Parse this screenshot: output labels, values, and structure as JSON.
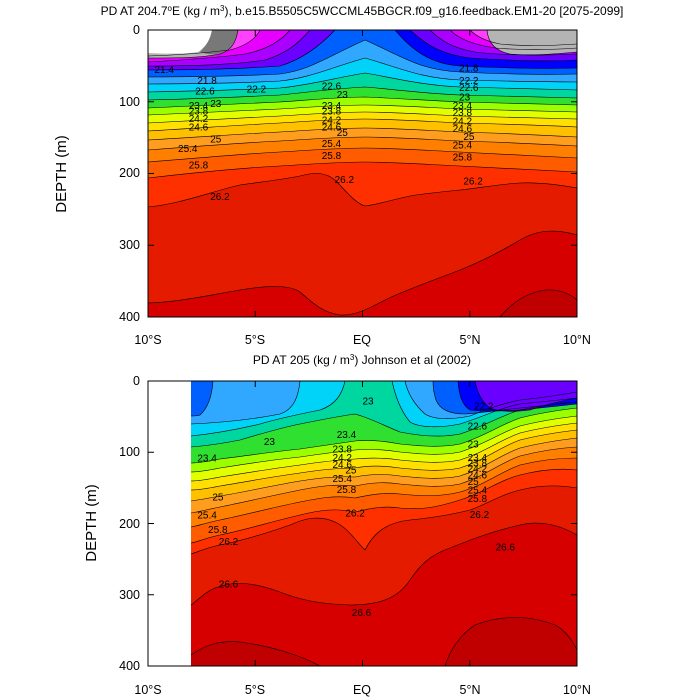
{
  "colors": {
    "band_15": "#d60000",
    "band_14": "#e51b00",
    "band_13": "#ff3000",
    "band_12": "#ff5c00",
    "band_11": "#ff8000",
    "band_10": "#ff9e1e",
    "band_9": "#ffc000",
    "band_8": "#ffe000",
    "band_7": "#e2ff00",
    "band_6": "#9cff00",
    "band_5": "#30e030",
    "band_4": "#00d6a0",
    "band_3": "#00d2f8",
    "band_2": "#30a8ff",
    "band_1": "#0060ff",
    "band_0": "#0000ff",
    "purple_1": "#6a00ff",
    "purple_2": "#aa00ff",
    "magenta_1": "#e600ff",
    "magenta_2": "#ff40ff",
    "gray_light": "#b4b4b4",
    "gray_dark": "#787878",
    "deep": "#c00000"
  },
  "chart_data": [
    {
      "type": "contour",
      "title_prefix": "PD AT 204.7",
      "title_suffix": "E (kg / m",
      "title_end": "), b.e15.B5505C5WCCML45BGCR.f09_g16.feedback.EM1-20 [2075-2099]",
      "ylabel": "DEPTH (m)",
      "x_ticks": [
        "10°S",
        "5°S",
        "EQ",
        "5°N",
        "10°N"
      ],
      "y_ticks": [
        "0",
        "100",
        "200",
        "300",
        "400"
      ],
      "ylim": [
        400,
        0
      ],
      "xlim": [
        -10,
        10
      ],
      "contour_levels": [
        21.4,
        21.8,
        22.2,
        22.6,
        23,
        23.4,
        23.8,
        24.2,
        24.6,
        25,
        25.4,
        25.8,
        26.2,
        26.6
      ],
      "contour_labels": [
        {
          "text": "21.4",
          "lat": -9.7,
          "depth": 60
        },
        {
          "text": "21.8",
          "lat": -7.7,
          "depth": 75
        },
        {
          "text": "22.2",
          "lat": -5.4,
          "depth": 87
        },
        {
          "text": "22.6",
          "lat": -7.8,
          "depth": 90
        },
        {
          "text": "23",
          "lat": -7.1,
          "depth": 107
        },
        {
          "text": "23.4",
          "lat": -8.1,
          "depth": 110
        },
        {
          "text": "23.8",
          "lat": -8.1,
          "depth": 118
        },
        {
          "text": "24.2",
          "lat": -8.1,
          "depth": 128
        },
        {
          "text": "24.6",
          "lat": -8.1,
          "depth": 140
        },
        {
          "text": "25",
          "lat": -7.1,
          "depth": 157
        },
        {
          "text": "25.4",
          "lat": -8.6,
          "depth": 170
        },
        {
          "text": "25.8",
          "lat": -8.1,
          "depth": 193
        },
        {
          "text": "26.2",
          "lat": -7.1,
          "depth": 237
        },
        {
          "text": "22.6",
          "lat": -1.9,
          "depth": 83
        },
        {
          "text": "23",
          "lat": -1.2,
          "depth": 95
        },
        {
          "text": "23.4",
          "lat": -1.9,
          "depth": 110
        },
        {
          "text": "23.8",
          "lat": -1.9,
          "depth": 118
        },
        {
          "text": "24.2",
          "lat": -1.9,
          "depth": 130
        },
        {
          "text": "24.6",
          "lat": -1.9,
          "depth": 140
        },
        {
          "text": "25",
          "lat": -1.2,
          "depth": 148
        },
        {
          "text": "25.4",
          "lat": -1.9,
          "depth": 163
        },
        {
          "text": "25.8",
          "lat": -1.9,
          "depth": 180
        },
        {
          "text": "26.2",
          "lat": -1.3,
          "depth": 213
        },
        {
          "text": "21.8",
          "lat": 4.5,
          "depth": 58
        },
        {
          "text": "22.2",
          "lat": 4.5,
          "depth": 75
        },
        {
          "text": "22.6",
          "lat": 4.5,
          "depth": 85
        },
        {
          "text": "23",
          "lat": 4.5,
          "depth": 98
        },
        {
          "text": "23.4",
          "lat": 4.2,
          "depth": 110
        },
        {
          "text": "23.8",
          "lat": 4.2,
          "depth": 120
        },
        {
          "text": "24.2",
          "lat": 4.2,
          "depth": 132
        },
        {
          "text": "24.6",
          "lat": 4.2,
          "depth": 142
        },
        {
          "text": "25",
          "lat": 4.7,
          "depth": 153
        },
        {
          "text": "25.4",
          "lat": 4.2,
          "depth": 165
        },
        {
          "text": "25.8",
          "lat": 4.2,
          "depth": 182
        },
        {
          "text": "26.2",
          "lat": 4.7,
          "depth": 215
        }
      ]
    },
    {
      "type": "contour",
      "title_prefix": "PD AT 205 (kg / m",
      "title_end": ") Johnson et al (2002)",
      "ylabel": "DEPTH (m)",
      "x_ticks": [
        "10°S",
        "5°S",
        "EQ",
        "5°N",
        "10°N"
      ],
      "y_ticks": [
        "0",
        "100",
        "200",
        "300",
        "400"
      ],
      "ylim": [
        400,
        0
      ],
      "xlim": [
        -10,
        10
      ],
      "data_start_lat": -8,
      "contour_levels": [
        22.2,
        22.6,
        23,
        23.4,
        23.8,
        24.2,
        24.6,
        25,
        25.4,
        25.8,
        26.2,
        26.6
      ],
      "contour_labels": [
        {
          "text": "22.2",
          "lat": 5.2,
          "depth": 40
        },
        {
          "text": "22.6",
          "lat": 4.9,
          "depth": 68
        },
        {
          "text": "23",
          "lat": -4.6,
          "depth": 90
        },
        {
          "text": "23",
          "lat": 0.0,
          "depth": 33
        },
        {
          "text": "23",
          "lat": 4.9,
          "depth": 93
        },
        {
          "text": "23.4",
          "lat": -7.7,
          "depth": 113
        },
        {
          "text": "23.4",
          "lat": -1.2,
          "depth": 80
        },
        {
          "text": "23.4",
          "lat": 4.9,
          "depth": 112
        },
        {
          "text": "23.8",
          "lat": -1.4,
          "depth": 100
        },
        {
          "text": "23.8",
          "lat": 4.9,
          "depth": 120
        },
        {
          "text": "24.2",
          "lat": -1.4,
          "depth": 112
        },
        {
          "text": "24.2",
          "lat": 4.9,
          "depth": 128
        },
        {
          "text": "24.6",
          "lat": -1.4,
          "depth": 122
        },
        {
          "text": "24.6",
          "lat": 4.9,
          "depth": 137
        },
        {
          "text": "25",
          "lat": -7.0,
          "depth": 168
        },
        {
          "text": "25",
          "lat": -0.8,
          "depth": 130
        },
        {
          "text": "25",
          "lat": 4.9,
          "depth": 146
        },
        {
          "text": "25.4",
          "lat": -7.7,
          "depth": 193
        },
        {
          "text": "25.4",
          "lat": -1.4,
          "depth": 142
        },
        {
          "text": "25.4",
          "lat": 4.9,
          "depth": 158
        },
        {
          "text": "25.8",
          "lat": -7.2,
          "depth": 213
        },
        {
          "text": "25.8",
          "lat": -1.2,
          "depth": 157
        },
        {
          "text": "25.8",
          "lat": 4.9,
          "depth": 170
        },
        {
          "text": "26.2",
          "lat": -6.7,
          "depth": 230
        },
        {
          "text": "26.2",
          "lat": -0.8,
          "depth": 190
        },
        {
          "text": "26.2",
          "lat": 5.0,
          "depth": 192
        },
        {
          "text": "26.6",
          "lat": -6.7,
          "depth": 290
        },
        {
          "text": "26.6",
          "lat": -0.5,
          "depth": 330
        },
        {
          "text": "26.6",
          "lat": 6.2,
          "depth": 238
        }
      ]
    }
  ]
}
